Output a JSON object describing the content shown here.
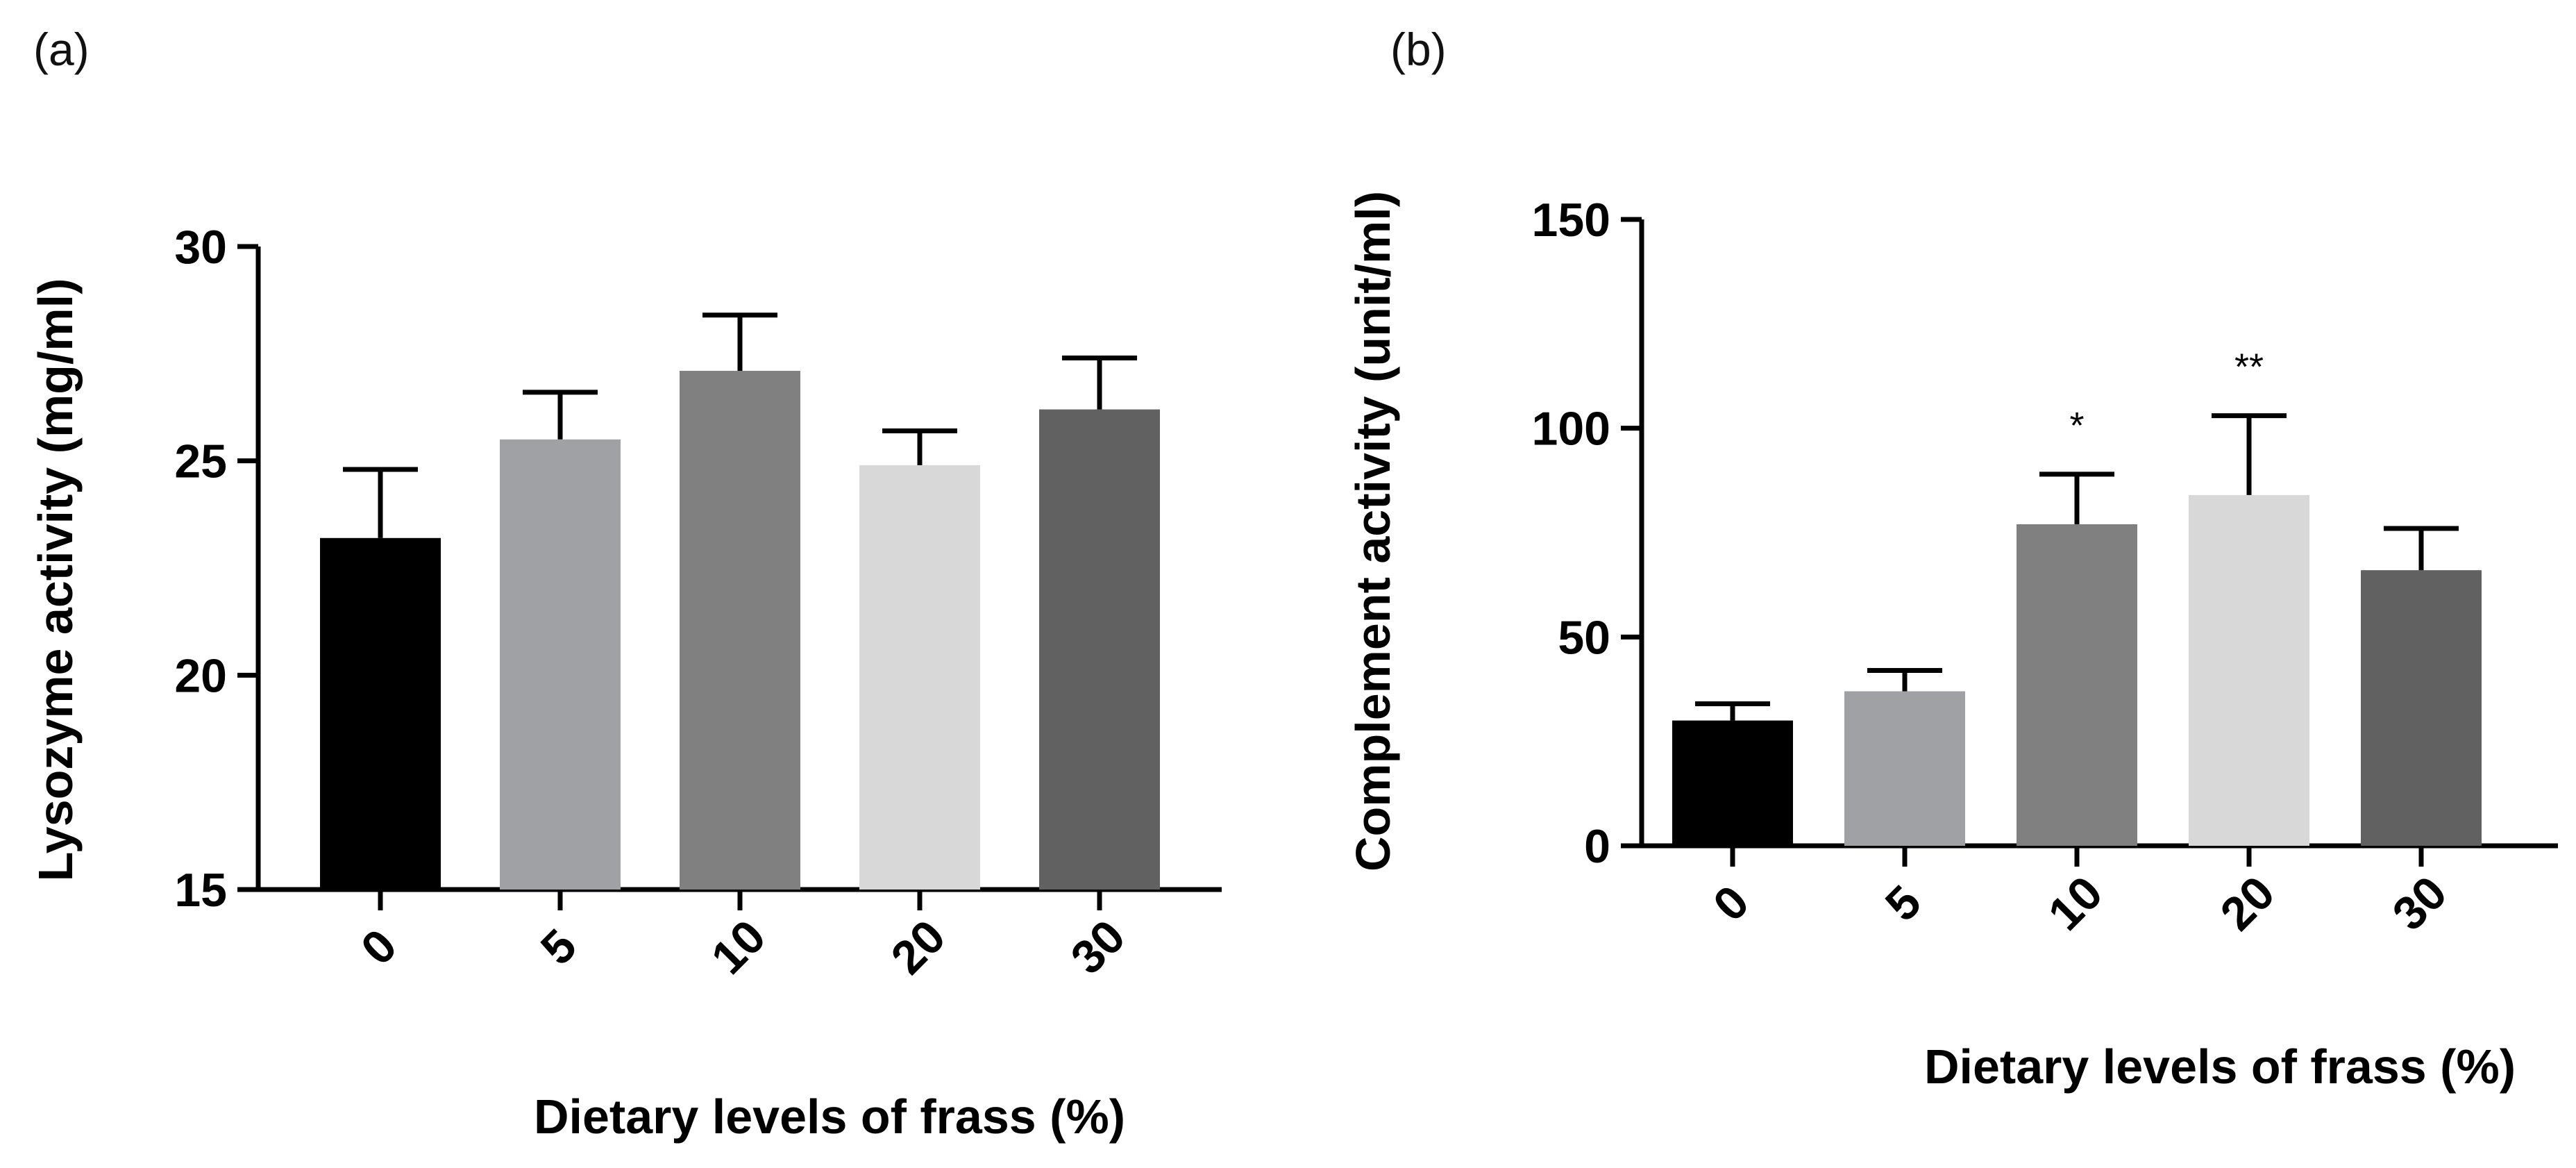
{
  "chart_data": [
    {
      "panel": "(a)",
      "type": "bar",
      "categories": [
        "0",
        "5",
        "10",
        "20",
        "30"
      ],
      "values": [
        23.2,
        25.5,
        27.1,
        24.9,
        26.2
      ],
      "errors": [
        1.6,
        1.1,
        1.3,
        0.8,
        1.2
      ],
      "colors": [
        "#000000",
        "#a0a1a5",
        "#808080",
        "#d8d8d8",
        "#616161"
      ],
      "significance": [
        "",
        "",
        "",
        "",
        ""
      ],
      "xlabel": "Dietary levels of frass (%)",
      "ylabel": "Lysozyme activity (mg/ml)",
      "ylim": [
        15,
        30
      ],
      "yticks": [
        15,
        20,
        25,
        30
      ],
      "grid": false
    },
    {
      "panel": "(b)",
      "type": "bar",
      "categories": [
        "0",
        "5",
        "10",
        "20",
        "30"
      ],
      "values": [
        30,
        37,
        77,
        84,
        66
      ],
      "errors": [
        4,
        5,
        12,
        19,
        10
      ],
      "colors": [
        "#000000",
        "#a0a1a5",
        "#808080",
        "#d8d8d8",
        "#616161"
      ],
      "significance": [
        "",
        "",
        "*",
        "**",
        ""
      ],
      "xlabel": "Dietary levels of frass (%)",
      "ylabel": "Complement activity (unit/ml)",
      "ylim": [
        0,
        150
      ],
      "yticks": [
        0,
        50,
        100,
        150
      ],
      "grid": false
    }
  ]
}
